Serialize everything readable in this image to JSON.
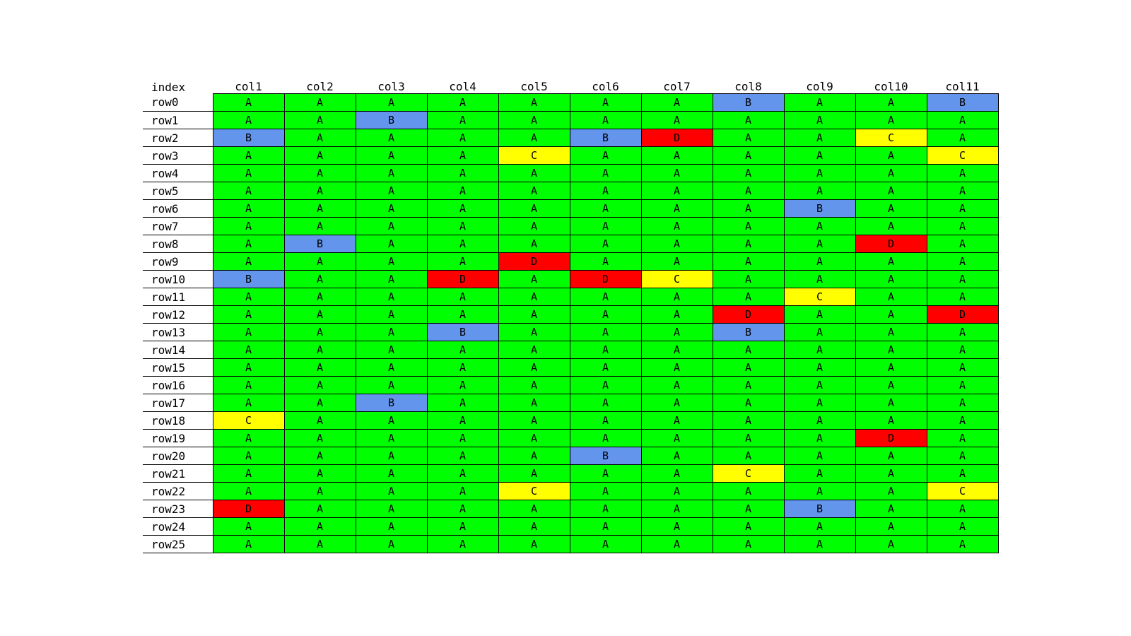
{
  "chart_data": {
    "type": "table",
    "index_label": "index",
    "columns": [
      "col1",
      "col2",
      "col3",
      "col4",
      "col5",
      "col6",
      "col7",
      "col8",
      "col9",
      "col10",
      "col11"
    ],
    "rows": [
      {
        "label": "row0",
        "values": [
          "A",
          "A",
          "A",
          "A",
          "A",
          "A",
          "A",
          "B",
          "A",
          "A",
          "B"
        ]
      },
      {
        "label": "row1",
        "values": [
          "A",
          "A",
          "B",
          "A",
          "A",
          "A",
          "A",
          "A",
          "A",
          "A",
          "A"
        ]
      },
      {
        "label": "row2",
        "values": [
          "B",
          "A",
          "A",
          "A",
          "A",
          "B",
          "D",
          "A",
          "A",
          "C",
          "A"
        ]
      },
      {
        "label": "row3",
        "values": [
          "A",
          "A",
          "A",
          "A",
          "C",
          "A",
          "A",
          "A",
          "A",
          "A",
          "C"
        ]
      },
      {
        "label": "row4",
        "values": [
          "A",
          "A",
          "A",
          "A",
          "A",
          "A",
          "A",
          "A",
          "A",
          "A",
          "A"
        ]
      },
      {
        "label": "row5",
        "values": [
          "A",
          "A",
          "A",
          "A",
          "A",
          "A",
          "A",
          "A",
          "A",
          "A",
          "A"
        ]
      },
      {
        "label": "row6",
        "values": [
          "A",
          "A",
          "A",
          "A",
          "A",
          "A",
          "A",
          "A",
          "B",
          "A",
          "A"
        ]
      },
      {
        "label": "row7",
        "values": [
          "A",
          "A",
          "A",
          "A",
          "A",
          "A",
          "A",
          "A",
          "A",
          "A",
          "A"
        ]
      },
      {
        "label": "row8",
        "values": [
          "A",
          "B",
          "A",
          "A",
          "A",
          "A",
          "A",
          "A",
          "A",
          "D",
          "A"
        ]
      },
      {
        "label": "row9",
        "values": [
          "A",
          "A",
          "A",
          "A",
          "D",
          "A",
          "A",
          "A",
          "A",
          "A",
          "A"
        ]
      },
      {
        "label": "row10",
        "values": [
          "B",
          "A",
          "A",
          "D",
          "A",
          "D",
          "C",
          "A",
          "A",
          "A",
          "A"
        ]
      },
      {
        "label": "row11",
        "values": [
          "A",
          "A",
          "A",
          "A",
          "A",
          "A",
          "A",
          "A",
          "C",
          "A",
          "A"
        ]
      },
      {
        "label": "row12",
        "values": [
          "A",
          "A",
          "A",
          "A",
          "A",
          "A",
          "A",
          "D",
          "A",
          "A",
          "D"
        ]
      },
      {
        "label": "row13",
        "values": [
          "A",
          "A",
          "A",
          "B",
          "A",
          "A",
          "A",
          "B",
          "A",
          "A",
          "A"
        ]
      },
      {
        "label": "row14",
        "values": [
          "A",
          "A",
          "A",
          "A",
          "A",
          "A",
          "A",
          "A",
          "A",
          "A",
          "A"
        ]
      },
      {
        "label": "row15",
        "values": [
          "A",
          "A",
          "A",
          "A",
          "A",
          "A",
          "A",
          "A",
          "A",
          "A",
          "A"
        ]
      },
      {
        "label": "row16",
        "values": [
          "A",
          "A",
          "A",
          "A",
          "A",
          "A",
          "A",
          "A",
          "A",
          "A",
          "A"
        ]
      },
      {
        "label": "row17",
        "values": [
          "A",
          "A",
          "B",
          "A",
          "A",
          "A",
          "A",
          "A",
          "A",
          "A",
          "A"
        ]
      },
      {
        "label": "row18",
        "values": [
          "C",
          "A",
          "A",
          "A",
          "A",
          "A",
          "A",
          "A",
          "A",
          "A",
          "A"
        ]
      },
      {
        "label": "row19",
        "values": [
          "A",
          "A",
          "A",
          "A",
          "A",
          "A",
          "A",
          "A",
          "A",
          "D",
          "A"
        ]
      },
      {
        "label": "row20",
        "values": [
          "A",
          "A",
          "A",
          "A",
          "A",
          "B",
          "A",
          "A",
          "A",
          "A",
          "A"
        ]
      },
      {
        "label": "row21",
        "values": [
          "A",
          "A",
          "A",
          "A",
          "A",
          "A",
          "A",
          "C",
          "A",
          "A",
          "A"
        ]
      },
      {
        "label": "row22",
        "values": [
          "A",
          "A",
          "A",
          "A",
          "C",
          "A",
          "A",
          "A",
          "A",
          "A",
          "C"
        ]
      },
      {
        "label": "row23",
        "values": [
          "D",
          "A",
          "A",
          "A",
          "A",
          "A",
          "A",
          "A",
          "B",
          "A",
          "A"
        ]
      },
      {
        "label": "row24",
        "values": [
          "A",
          "A",
          "A",
          "A",
          "A",
          "A",
          "A",
          "A",
          "A",
          "A",
          "A"
        ]
      },
      {
        "label": "row25",
        "values": [
          "A",
          "A",
          "A",
          "A",
          "A",
          "A",
          "A",
          "A",
          "A",
          "A",
          "A"
        ]
      }
    ],
    "value_colors": {
      "A": "#00ff00",
      "B": "#6495ed",
      "C": "#ffff00",
      "D": "#ff0000"
    }
  }
}
